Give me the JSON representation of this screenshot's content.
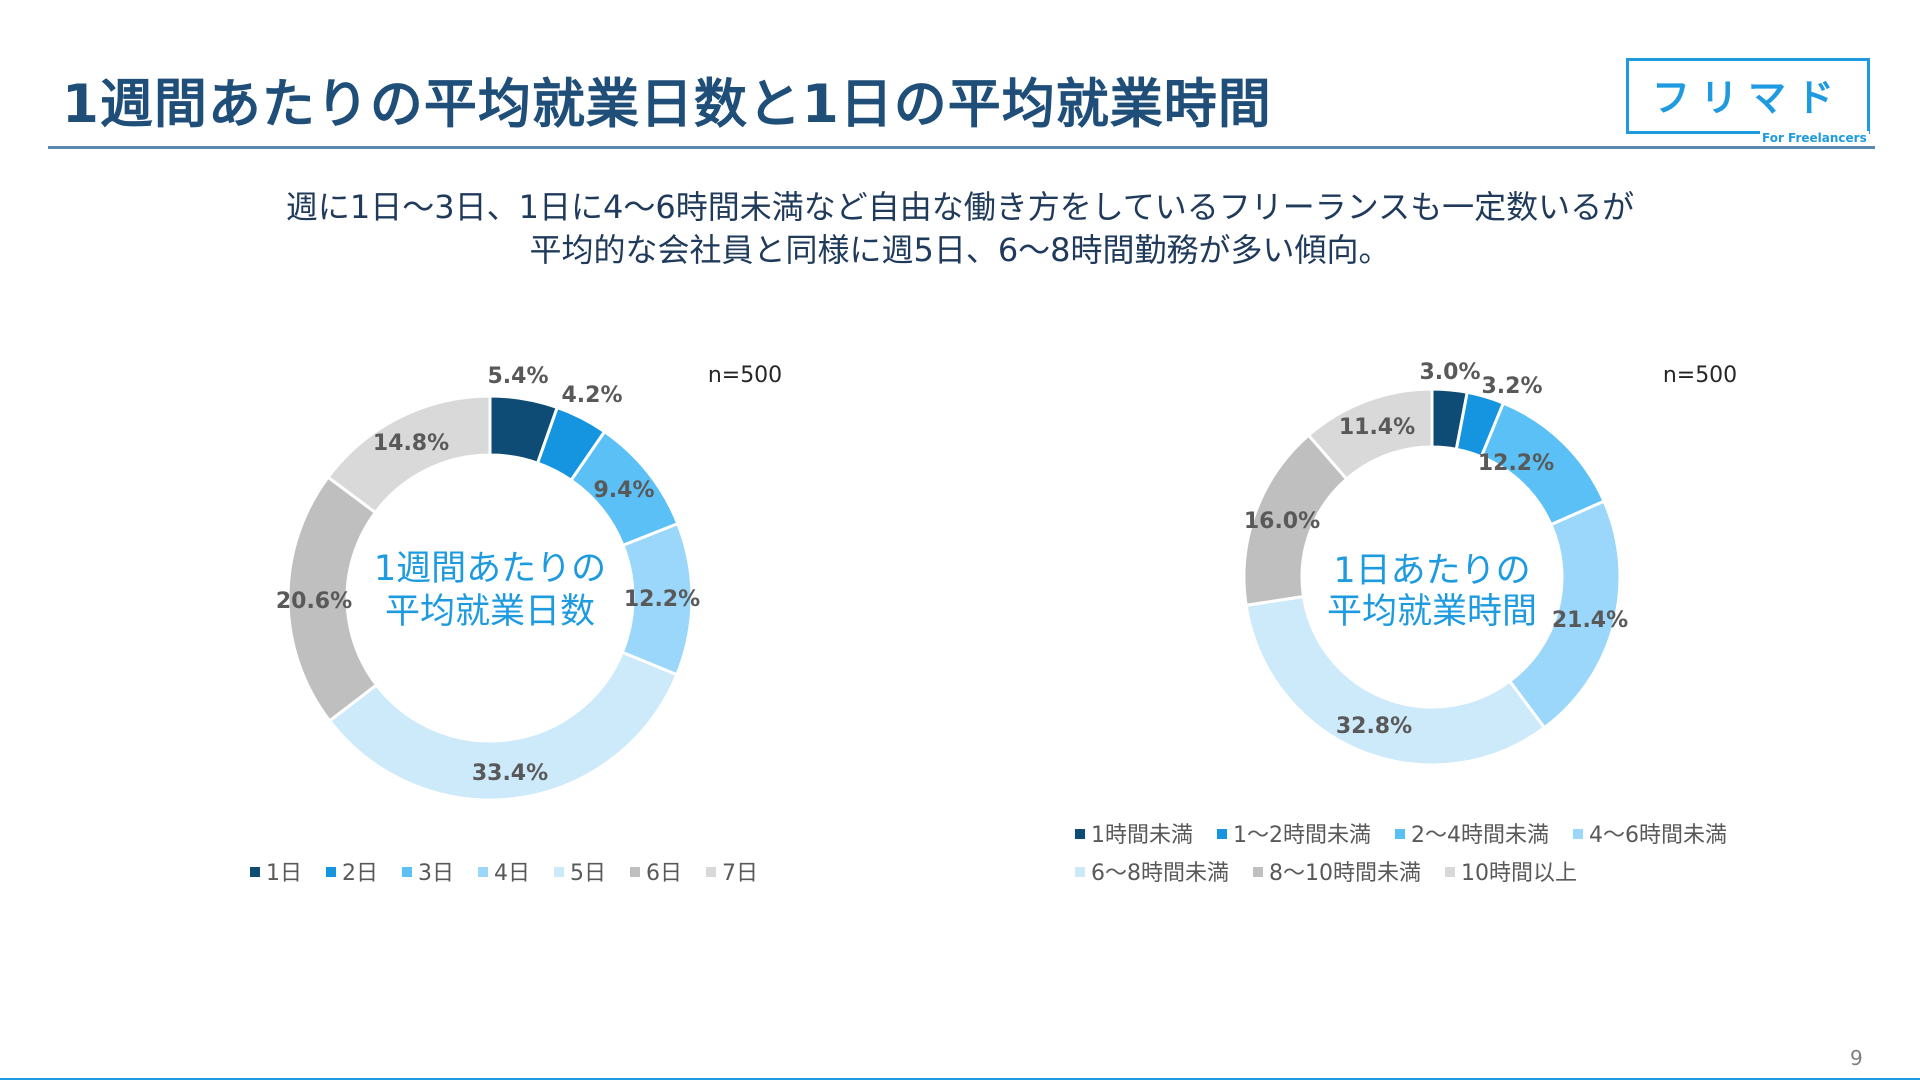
{
  "slide": {
    "title": "1週間あたりの平均就業日数と1日の平均就業時間",
    "subtitle_line1": "週に1日〜3日、1日に4〜6時間未満など自由な働き方をしているフリーランスも一定数いるが",
    "subtitle_line2": "平均的な会社員と同様に週5日、6〜8時間勤務が多い傾向。",
    "logo_text": "フリマド",
    "logo_sub": "For Freelancers",
    "page_number": "9"
  },
  "chart_data": [
    {
      "type": "pie",
      "variant": "donut",
      "sample_size": "n=500",
      "center_label": [
        "1週間あたりの",
        "平均就業日数"
      ],
      "categories": [
        "1日",
        "2日",
        "3日",
        "4日",
        "5日",
        "6日",
        "7日"
      ],
      "values": [
        5.4,
        4.2,
        9.4,
        12.2,
        33.4,
        20.6,
        14.8
      ],
      "value_labels": [
        "5.4%",
        "4.2%",
        "9.4%",
        "12.2%",
        "33.4%",
        "20.6%",
        "14.8%"
      ],
      "colors": [
        "#0f4c75",
        "#1595e0",
        "#5bc0f5",
        "#9ad7fa",
        "#cdeafb",
        "#bfbfbf",
        "#d9d9d9"
      ],
      "legend_position": "bottom"
    },
    {
      "type": "pie",
      "variant": "donut",
      "sample_size": "n=500",
      "center_label": [
        "1日あたりの",
        "平均就業時間"
      ],
      "categories": [
        "1時間未満",
        "1〜2時間未満",
        "2〜4時間未満",
        "4〜6時間未満",
        "6〜8時間未満",
        "8〜10時間未満",
        "10時間以上"
      ],
      "values": [
        3.0,
        3.2,
        12.2,
        21.4,
        32.8,
        16.0,
        11.4
      ],
      "value_labels": [
        "3.0%",
        "3.2%",
        "12.2%",
        "21.4%",
        "32.8%",
        "16.0%",
        "11.4%"
      ],
      "colors": [
        "#0f4c75",
        "#1595e0",
        "#5bc0f5",
        "#9ad7fa",
        "#cdeafb",
        "#bfbfbf",
        "#d9d9d9"
      ],
      "legend_position": "bottom"
    }
  ]
}
